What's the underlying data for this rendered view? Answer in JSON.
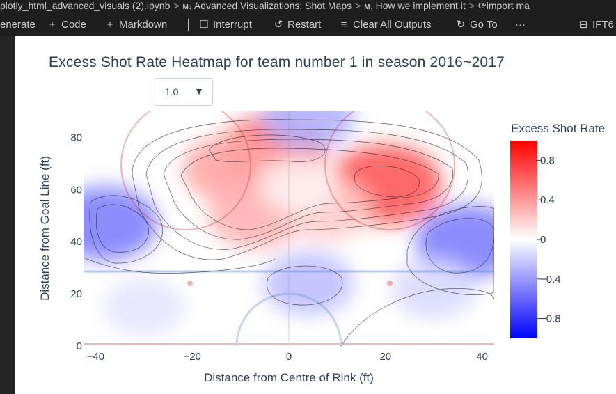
{
  "breadcrumb": {
    "file": "plotly_html_advanced_visuals (2).ipynb",
    "md_badge": "M↓",
    "section1": "Advanced Visualizations: Shot Maps",
    "section2": "How we implement it",
    "section3": "import ma"
  },
  "toolbar": {
    "generate": "enerate",
    "code": "Code",
    "markdown": "Markdown",
    "interrupt": "Interrupt",
    "restart": "Restart",
    "clear": "Clear All Outputs",
    "goto": "Go To",
    "more": "···",
    "kernel": "IFT6"
  },
  "icons": {
    "code": "plus-icon",
    "markdown": "plus-icon",
    "interrupt": "stop-square-icon",
    "restart": "restart-icon",
    "clear": "clear-outputs-icon",
    "goto": "sync-icon",
    "kernel": "kernel-icon"
  },
  "dropdown": {
    "value": "1.0"
  },
  "chart_data": {
    "type": "heatmap",
    "title": "Excess Shot Rate Heatmap for team number 1 in season 2016~2017",
    "xlabel": "Distance from Centre of Rink (ft)",
    "ylabel": "Distance from Goal Line (ft)",
    "xlim": [
      -42.5,
      42.5
    ],
    "ylim": [
      0,
      90
    ],
    "x_ticks": [
      "−40",
      "−20",
      "0",
      "20",
      "40"
    ],
    "x_tick_values": [
      -40,
      -20,
      0,
      20,
      40
    ],
    "y_ticks": [
      "0",
      "20",
      "40",
      "60",
      "80"
    ],
    "y_tick_values": [
      0,
      20,
      40,
      60,
      80
    ],
    "colorbar": {
      "title": "Excess Shot Rate",
      "range": [
        -1,
        1
      ],
      "ticks": [
        "0.8",
        "0.4",
        "0",
        "−0.4",
        "−0.8"
      ],
      "tick_values": [
        0.8,
        0.4,
        0,
        -0.4,
        -0.8
      ],
      "colorscale": [
        "#0000ff",
        "#ffffff",
        "#ff0000"
      ]
    },
    "hotspots": [
      {
        "x": -3,
        "y": 75,
        "value": 0.55
      },
      {
        "x": 20,
        "y": 62,
        "value": 0.65
      },
      {
        "x": -12,
        "y": 68,
        "value": 0.35
      },
      {
        "x": -7,
        "y": 50,
        "value": 0.3
      },
      {
        "x": 8,
        "y": 52,
        "value": 0.2
      },
      {
        "x": -38,
        "y": 47,
        "value": -0.5
      },
      {
        "x": 37,
        "y": 40,
        "value": -0.5
      },
      {
        "x": 4,
        "y": 88,
        "value": -0.3
      },
      {
        "x": 4,
        "y": 24,
        "value": -0.25
      },
      {
        "x": 30,
        "y": 22,
        "value": -0.15
      },
      {
        "x": -30,
        "y": 15,
        "value": -0.1
      },
      {
        "x": 2,
        "y": 62,
        "value": 0.05
      }
    ]
  }
}
